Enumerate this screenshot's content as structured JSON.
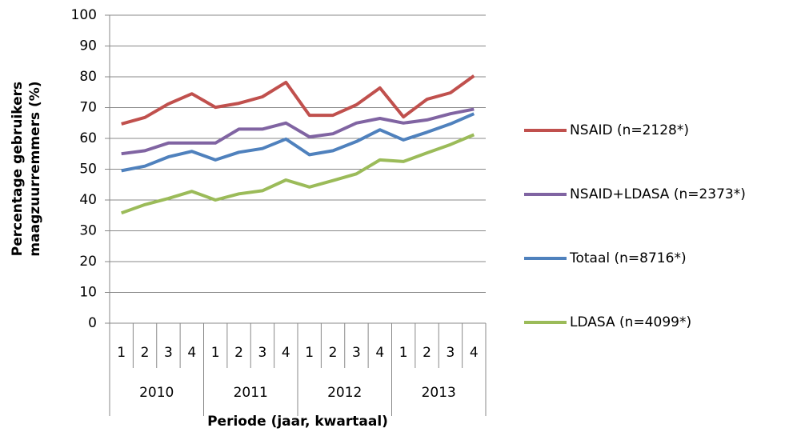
{
  "chart_data": {
    "type": "line",
    "y_label": [
      "Percentage gebruikers",
      "maagzuurremmers (%)"
    ],
    "x_label": "Periode (jaar, kwartaal)",
    "categories": [
      "1",
      "2",
      "3",
      "4",
      "1",
      "2",
      "3",
      "4",
      "1",
      "2",
      "3",
      "4",
      "1",
      "2",
      "3",
      "4"
    ],
    "category_groups": [
      "2010",
      "2011",
      "2012",
      "2013"
    ],
    "ylim": [
      0,
      100
    ],
    "yticks": [
      0,
      10,
      20,
      30,
      40,
      50,
      60,
      70,
      80,
      90,
      100
    ],
    "grid": true,
    "legend": "right",
    "series": [
      {
        "name": "NSAID (n=2128*)",
        "color": "#c0504d",
        "values": [
          64.7,
          66.8,
          71.2,
          74.5,
          70.1,
          71.4,
          73.5,
          78.2,
          67.5,
          67.5,
          70.9,
          76.4,
          67.0,
          72.7,
          74.8,
          80.3
        ]
      },
      {
        "name": "NSAID+LDASA (n=2373*)",
        "color": "#8064a2",
        "values": [
          55,
          56,
          58.5,
          58.5,
          58.5,
          63,
          63,
          65,
          60.5,
          61.5,
          65,
          66.5,
          65,
          66,
          68,
          69.5
        ]
      },
      {
        "name": "Totaal (n=8716*)",
        "color": "#4f81bd",
        "values": [
          49.5,
          51,
          54,
          55.8,
          53,
          55.5,
          56.7,
          59.8,
          54.7,
          56,
          59,
          62.8,
          59.5,
          62,
          64.7,
          68
        ]
      },
      {
        "name": "LDASA (n=4099*)",
        "color": "#9bbb59",
        "values": [
          35.8,
          38.5,
          40.5,
          42.8,
          40,
          42,
          43,
          46.5,
          44.2,
          46.3,
          48.5,
          53,
          52.5,
          55.3,
          58,
          61.2
        ]
      }
    ]
  }
}
